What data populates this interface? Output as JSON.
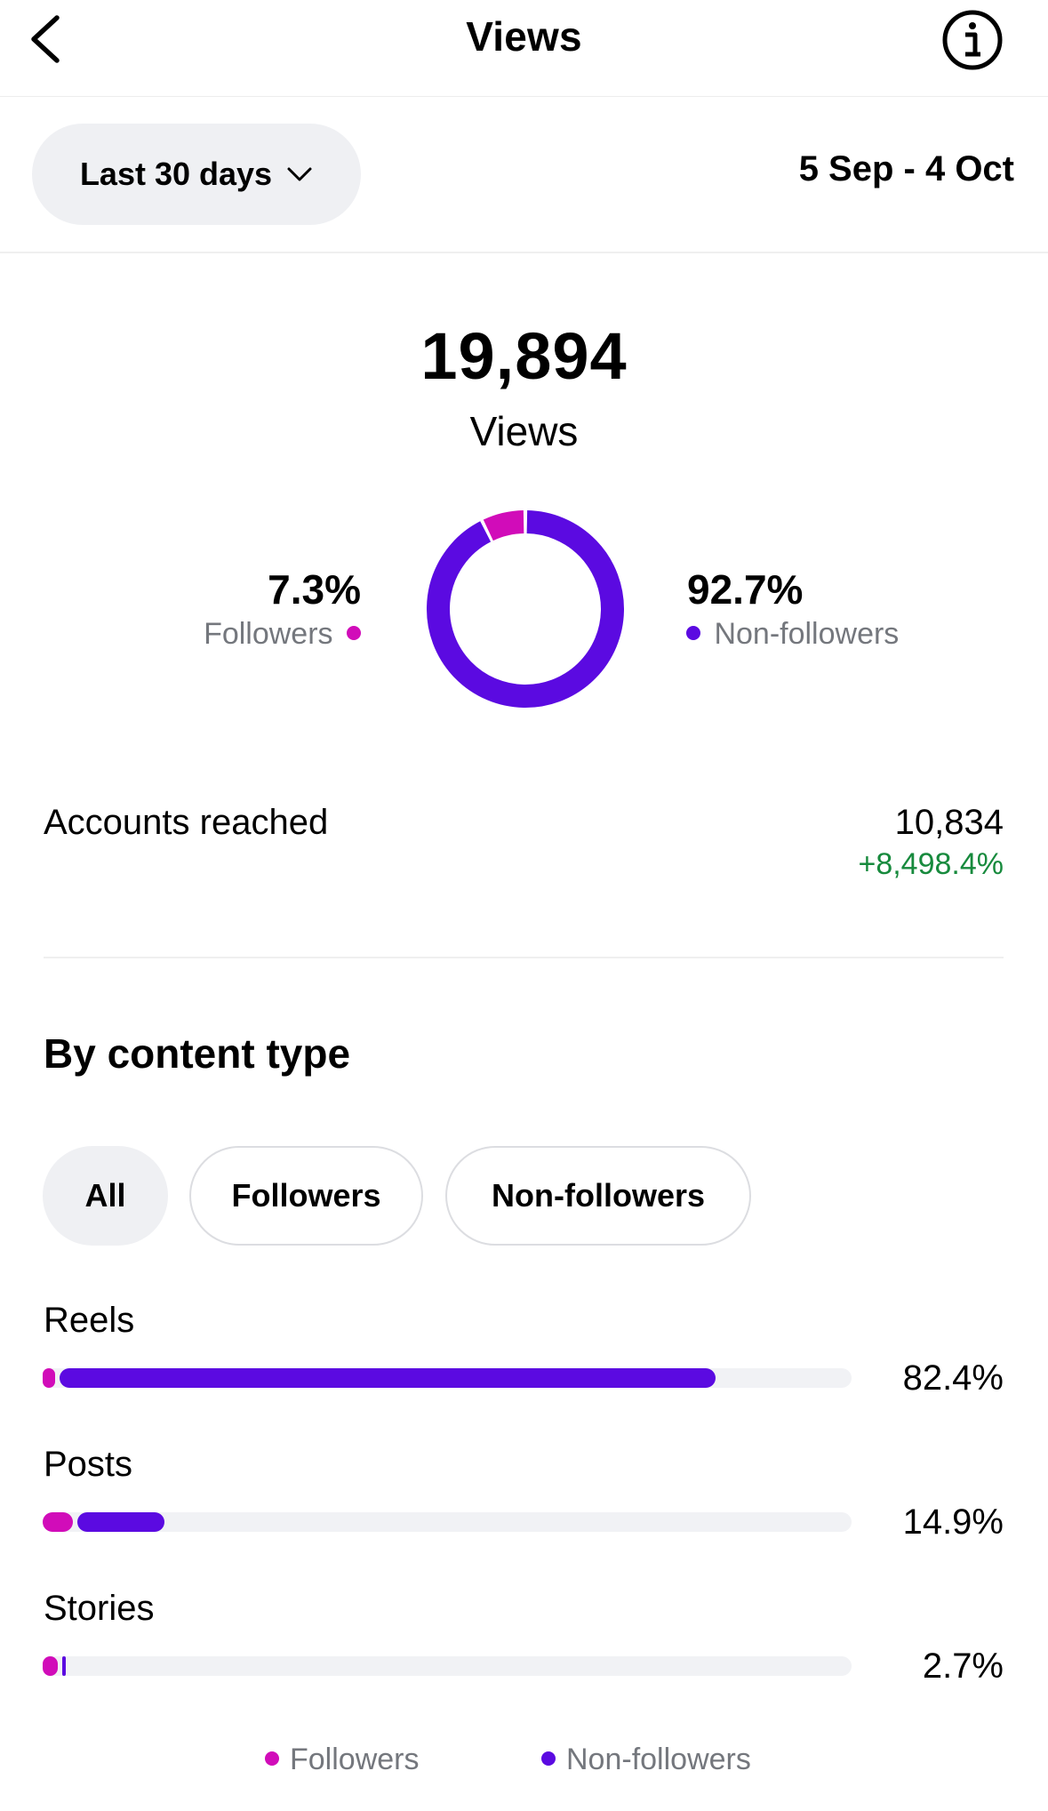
{
  "header": {
    "title": "Views",
    "back_icon": "chevron-left-icon",
    "info_icon": "info-icon"
  },
  "range": {
    "selected": "Last 30 days",
    "dates": "5 Sep - 4 Oct",
    "dropdown_icon": "chevron-down-icon"
  },
  "summary": {
    "total": "19,894",
    "label": "Views",
    "followers_pct": "7.3%",
    "followers_label": "Followers",
    "nonfollowers_pct": "92.7%",
    "nonfollowers_label": "Non-followers"
  },
  "accounts_reached": {
    "label": "Accounts reached",
    "value": "10,834",
    "change": "+8,498.4%"
  },
  "content_type": {
    "title": "By content type",
    "filters": [
      "All",
      "Followers",
      "Non-followers"
    ],
    "selected_filter": "All",
    "rows": [
      {
        "label": "Reels",
        "percent": "82.4%",
        "followers_share": 0.014,
        "total_share": 0.824
      },
      {
        "label": "Posts",
        "percent": "14.9%",
        "followers_share": 0.037,
        "total_share": 0.149
      },
      {
        "label": "Stories",
        "percent": "2.7%",
        "followers_share": 0.019,
        "total_share": 0.027
      }
    ],
    "legend": [
      "Followers",
      "Non-followers"
    ]
  },
  "colors": {
    "followers": "#d10cb9",
    "nonfollowers": "#5b0ae1",
    "positive": "#178a3d"
  },
  "chart_data": {
    "type": "pie",
    "categories": [
      "Followers",
      "Non-followers"
    ],
    "values": [
      7.3,
      92.7
    ],
    "title": "",
    "xlabel": "",
    "ylabel": ""
  }
}
